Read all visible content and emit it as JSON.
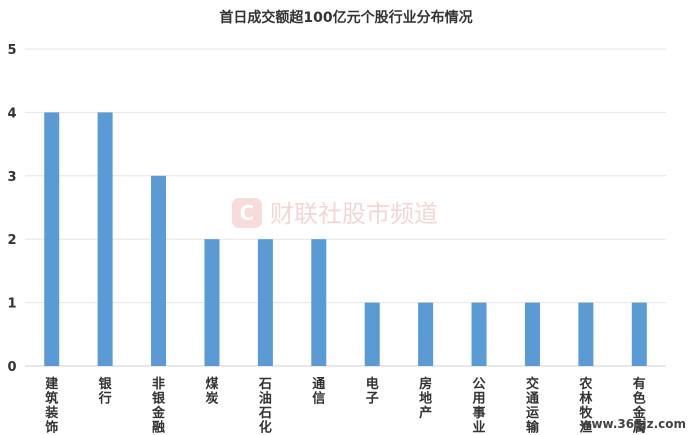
{
  "chart_data": {
    "type": "bar",
    "title": "首日成交额超100亿元个股行业分布情况",
    "xlabel": "",
    "ylabel": "",
    "ylim": [
      0,
      5
    ],
    "y_ticks": [
      0,
      1,
      2,
      3,
      4,
      5
    ],
    "grid": true,
    "bar_color": "#5b9bd5",
    "categories": [
      "建筑装饰",
      "银行",
      "非银金融",
      "煤炭",
      "石油石化",
      "通信",
      "电子",
      "房地产",
      "公用事业",
      "交通运输",
      "农林牧渔",
      "有色金属"
    ],
    "values": [
      4,
      4,
      3,
      2,
      2,
      2,
      1,
      1,
      1,
      1,
      1,
      1
    ]
  },
  "watermark": {
    "icon": "C",
    "text": "财联社股市频道",
    "color": "#e98a8a"
  },
  "corner_watermark": {
    "text": "www.365jz.com"
  }
}
